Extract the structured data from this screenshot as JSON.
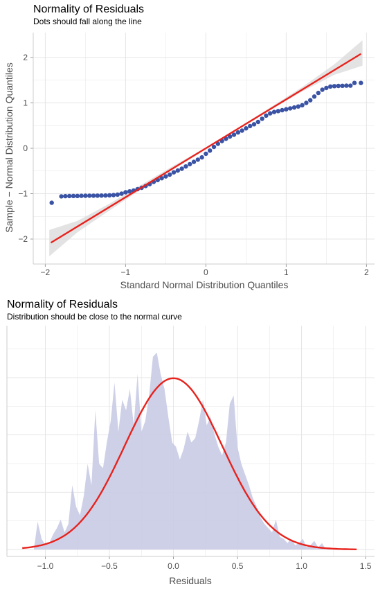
{
  "colors": {
    "points": "#3a53a4",
    "reference_line": "#e8221c",
    "confidence_band": "#d9d9d9",
    "density_fill": "#c9cbe6",
    "grid": "#e5e5e5",
    "axis_text": "#4d4d4d"
  },
  "chart_data": [
    {
      "type": "scatter",
      "title": "Normality of Residuals",
      "subtitle": "Dots should fall along the line",
      "xlabel": "Standard Normal Distribution Quantiles",
      "ylabel": "Sample − Normal Distribution Quantiles",
      "xlim": [
        -2.15,
        2.1
      ],
      "ylim": [
        -2.55,
        2.55
      ],
      "xticks": [
        -2,
        -1,
        0,
        1,
        2
      ],
      "xtick_labels": [
        "−2",
        "−1",
        "0",
        "1",
        "2"
      ],
      "yticks": [
        -2,
        -1,
        0,
        1,
        2
      ],
      "ytick_labels": [
        "−2",
        "−1",
        "0",
        "1",
        "2"
      ],
      "grid": true,
      "reference_line": {
        "x": [
          -1.93,
          1.93
        ],
        "y": [
          -2.08,
          2.08
        ]
      },
      "confidence_band": {
        "x": [
          -1.95,
          -1.6,
          -1.2,
          -0.8,
          -0.4,
          0,
          0.4,
          0.8,
          1.2,
          1.6,
          1.95
        ],
        "lower": [
          -2.38,
          -1.85,
          -1.37,
          -0.9,
          -0.45,
          -0.02,
          0.41,
          0.84,
          1.25,
          1.62,
          1.82
        ],
        "upper": [
          -1.8,
          -1.6,
          -1.22,
          -0.8,
          -0.38,
          0.02,
          0.45,
          0.9,
          1.35,
          1.85,
          2.38
        ]
      },
      "points": [
        {
          "x": -1.92,
          "y": -1.2
        },
        {
          "x": -1.8,
          "y": -1.06
        },
        {
          "x": -1.75,
          "y": -1.055
        },
        {
          "x": -1.7,
          "y": -1.052
        },
        {
          "x": -1.65,
          "y": -1.05
        },
        {
          "x": -1.6,
          "y": -1.05
        },
        {
          "x": -1.55,
          "y": -1.048
        },
        {
          "x": -1.5,
          "y": -1.046
        },
        {
          "x": -1.45,
          "y": -1.045
        },
        {
          "x": -1.4,
          "y": -1.044
        },
        {
          "x": -1.35,
          "y": -1.043
        },
        {
          "x": -1.3,
          "y": -1.042
        },
        {
          "x": -1.25,
          "y": -1.04
        },
        {
          "x": -1.2,
          "y": -1.035
        },
        {
          "x": -1.15,
          "y": -1.03
        },
        {
          "x": -1.1,
          "y": -1.02
        },
        {
          "x": -1.05,
          "y": -1.0
        },
        {
          "x": -1.0,
          "y": -0.97
        },
        {
          "x": -0.95,
          "y": -0.95
        },
        {
          "x": -0.9,
          "y": -0.93
        },
        {
          "x": -0.85,
          "y": -0.9
        },
        {
          "x": -0.8,
          "y": -0.87
        },
        {
          "x": -0.75,
          "y": -0.83
        },
        {
          "x": -0.7,
          "y": -0.79
        },
        {
          "x": -0.65,
          "y": -0.74
        },
        {
          "x": -0.6,
          "y": -0.7
        },
        {
          "x": -0.55,
          "y": -0.66
        },
        {
          "x": -0.5,
          "y": -0.62
        },
        {
          "x": -0.45,
          "y": -0.58
        },
        {
          "x": -0.4,
          "y": -0.53
        },
        {
          "x": -0.35,
          "y": -0.49
        },
        {
          "x": -0.3,
          "y": -0.45
        },
        {
          "x": -0.25,
          "y": -0.4
        },
        {
          "x": -0.2,
          "y": -0.35
        },
        {
          "x": -0.15,
          "y": -0.3
        },
        {
          "x": -0.1,
          "y": -0.25
        },
        {
          "x": -0.05,
          "y": -0.2
        },
        {
          "x": 0.0,
          "y": -0.12
        },
        {
          "x": 0.05,
          "y": -0.05
        },
        {
          "x": 0.1,
          "y": 0.03
        },
        {
          "x": 0.15,
          "y": 0.1
        },
        {
          "x": 0.2,
          "y": 0.16
        },
        {
          "x": 0.25,
          "y": 0.21
        },
        {
          "x": 0.3,
          "y": 0.26
        },
        {
          "x": 0.35,
          "y": 0.3
        },
        {
          "x": 0.4,
          "y": 0.35
        },
        {
          "x": 0.45,
          "y": 0.39
        },
        {
          "x": 0.5,
          "y": 0.44
        },
        {
          "x": 0.55,
          "y": 0.49
        },
        {
          "x": 0.6,
          "y": 0.53
        },
        {
          "x": 0.65,
          "y": 0.58
        },
        {
          "x": 0.7,
          "y": 0.65
        },
        {
          "x": 0.75,
          "y": 0.72
        },
        {
          "x": 0.8,
          "y": 0.77
        },
        {
          "x": 0.85,
          "y": 0.8
        },
        {
          "x": 0.9,
          "y": 0.82
        },
        {
          "x": 0.95,
          "y": 0.84
        },
        {
          "x": 1.0,
          "y": 0.86
        },
        {
          "x": 1.05,
          "y": 0.88
        },
        {
          "x": 1.1,
          "y": 0.9
        },
        {
          "x": 1.15,
          "y": 0.92
        },
        {
          "x": 1.2,
          "y": 0.95
        },
        {
          "x": 1.25,
          "y": 1.0
        },
        {
          "x": 1.3,
          "y": 1.06
        },
        {
          "x": 1.35,
          "y": 1.14
        },
        {
          "x": 1.4,
          "y": 1.22
        },
        {
          "x": 1.45,
          "y": 1.29
        },
        {
          "x": 1.5,
          "y": 1.33
        },
        {
          "x": 1.55,
          "y": 1.36
        },
        {
          "x": 1.6,
          "y": 1.37
        },
        {
          "x": 1.65,
          "y": 1.375
        },
        {
          "x": 1.7,
          "y": 1.378
        },
        {
          "x": 1.75,
          "y": 1.38
        },
        {
          "x": 1.8,
          "y": 1.38
        },
        {
          "x": 1.85,
          "y": 1.44
        },
        {
          "x": 1.93,
          "y": 1.44
        }
      ]
    },
    {
      "type": "area",
      "title": "Normality of Residuals",
      "subtitle": "Distribution should be close to the normal curve",
      "xlabel": "Residuals",
      "ylabel": "",
      "xlim": [
        -1.3,
        1.57
      ],
      "xticks": [
        -1.0,
        -0.5,
        0.0,
        0.5,
        1.0,
        1.5
      ],
      "xtick_labels": [
        "−1.0",
        "−0.5",
        "0.0",
        "0.5",
        "1.0",
        "1.5"
      ],
      "yticks_count": 6,
      "grid": true,
      "density": {
        "x": [
          -1.09,
          -1.06,
          -1.03,
          -1.0,
          -0.97,
          -0.94,
          -0.91,
          -0.88,
          -0.85,
          -0.82,
          -0.79,
          -0.76,
          -0.73,
          -0.7,
          -0.67,
          -0.64,
          -0.61,
          -0.58,
          -0.55,
          -0.52,
          -0.49,
          -0.46,
          -0.43,
          -0.4,
          -0.37,
          -0.34,
          -0.31,
          -0.28,
          -0.25,
          -0.22,
          -0.19,
          -0.16,
          -0.13,
          -0.1,
          -0.07,
          -0.04,
          -0.01,
          0.02,
          0.05,
          0.08,
          0.11,
          0.14,
          0.17,
          0.2,
          0.23,
          0.26,
          0.29,
          0.32,
          0.35,
          0.38,
          0.41,
          0.44,
          0.47,
          0.5,
          0.53,
          0.56,
          0.59,
          0.62,
          0.65,
          0.68,
          0.71,
          0.74,
          0.77,
          0.8,
          0.83,
          0.86,
          0.89,
          0.92,
          0.95,
          0.98,
          1.01,
          1.04,
          1.07,
          1.1,
          1.13,
          1.16,
          1.19,
          1.22,
          1.25,
          1.28,
          1.31,
          1.34
        ],
        "y": [
          0.0,
          0.13,
          0.05,
          0.02,
          0.03,
          0.07,
          0.1,
          0.14,
          0.08,
          0.12,
          0.3,
          0.2,
          0.16,
          0.25,
          0.4,
          0.3,
          0.65,
          0.4,
          0.38,
          0.5,
          0.6,
          0.78,
          0.55,
          0.7,
          0.65,
          0.75,
          0.58,
          0.82,
          0.55,
          0.6,
          0.72,
          0.9,
          0.92,
          0.82,
          0.75,
          0.62,
          0.5,
          0.48,
          0.42,
          0.47,
          0.55,
          0.5,
          0.52,
          0.6,
          0.7,
          0.58,
          0.62,
          0.54,
          0.48,
          0.44,
          0.5,
          0.68,
          0.72,
          0.48,
          0.4,
          0.35,
          0.3,
          0.24,
          0.2,
          0.15,
          0.12,
          0.1,
          0.08,
          0.14,
          0.06,
          0.05,
          0.03,
          0.05,
          0.02,
          0.03,
          0.05,
          0.01,
          0.02,
          0.04,
          0.01,
          0.03,
          0.0,
          0.01,
          0.0,
          0.0,
          0.0,
          0.0
        ]
      },
      "normal_curve": {
        "mean": 0.0,
        "sd": 0.38,
        "xmin": -1.18,
        "xmax": 1.43
      }
    }
  ]
}
